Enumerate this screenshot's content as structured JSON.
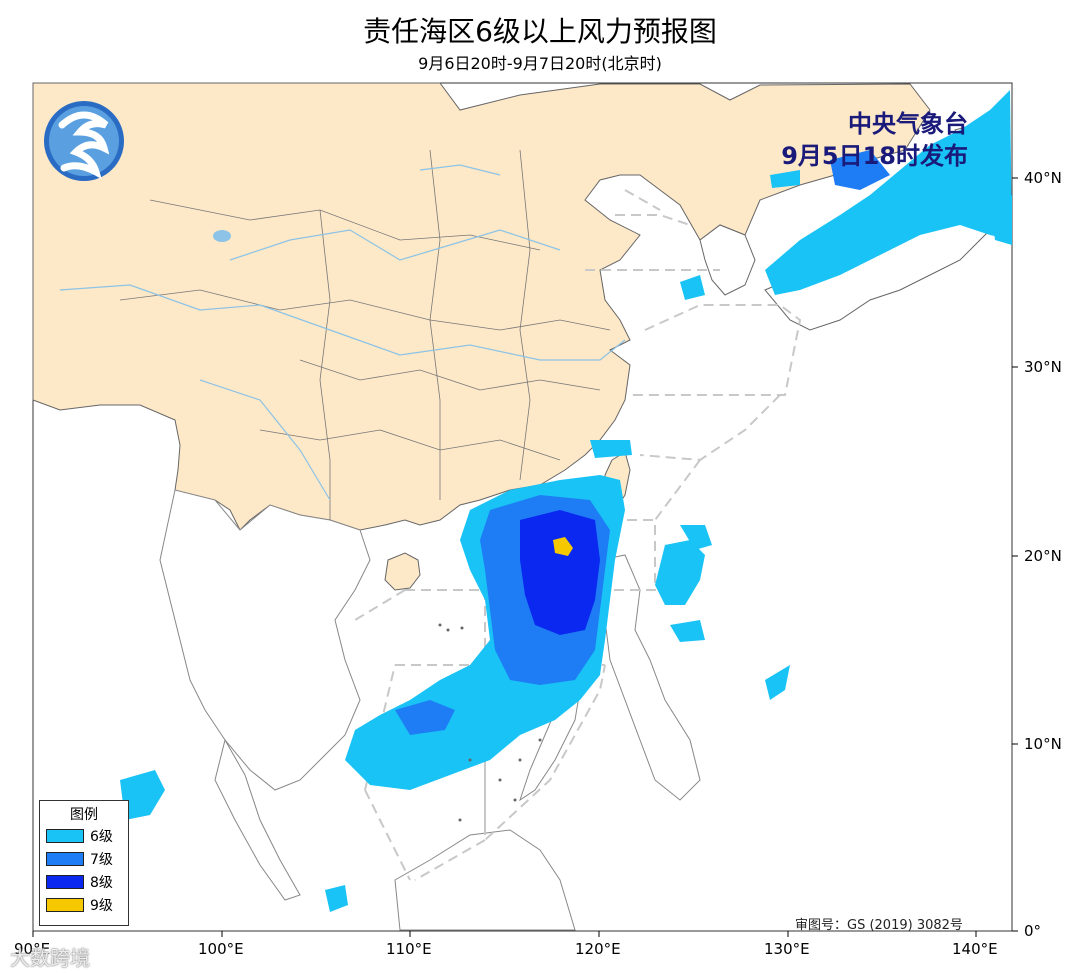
{
  "header": {
    "title": "责任海区6级以上风力预报图",
    "subtitle": "9月6日20时-9月7日20时(北京时)"
  },
  "issuer": {
    "line1": "中央气象台",
    "line2": "9月5日18时发布"
  },
  "legend": {
    "title": "图例",
    "items": [
      {
        "label": "6级",
        "color": "#19c3f5"
      },
      {
        "label": "7级",
        "color": "#1e7df5"
      },
      {
        "label": "8级",
        "color": "#0a28f0"
      },
      {
        "label": "9级",
        "color": "#f5c800"
      }
    ]
  },
  "axes": {
    "lon_ticks": [
      "90°E",
      "100°E",
      "110°E",
      "120°E",
      "130°E",
      "140°E"
    ],
    "lat_ticks": [
      "0°",
      "10°N",
      "20°N",
      "30°N",
      "40°N"
    ]
  },
  "footer": {
    "approval": "审图号：GS (2019) 3082号",
    "watermark": "大数跨境"
  },
  "colors": {
    "land_china": "#fde8c8",
    "land_other": "#ffffff",
    "sea": "#ffffff",
    "border": "#555555",
    "river": "#8cc3e6",
    "zone_line": "#c8c8c8"
  },
  "logo": "cma-logo-icon"
}
